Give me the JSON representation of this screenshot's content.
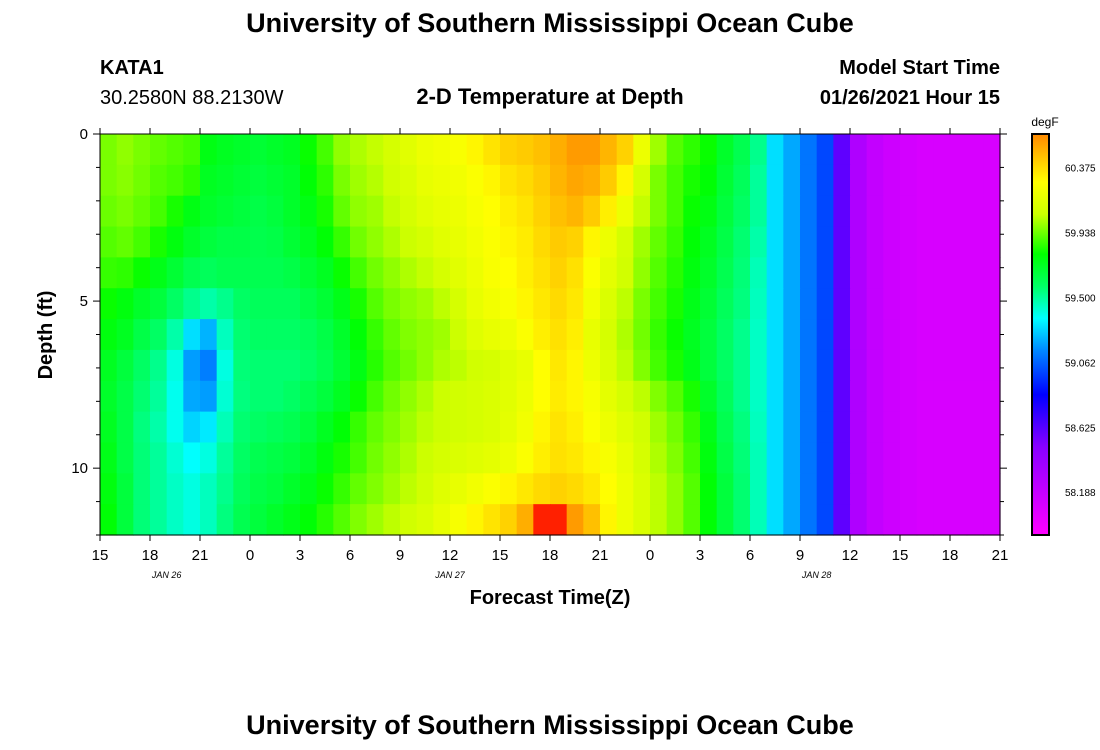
{
  "page": {
    "title_top": "University of Southern Mississippi Ocean Cube",
    "title_bottom": "University of Southern Mississippi Ocean Cube",
    "station": "KATA1",
    "location": "30.2580N 88.2130W",
    "plot_title": "2-D Temperature at Depth",
    "model_start_label": "Model Start Time",
    "model_start_value": "01/26/2021 Hour 15"
  },
  "chart_data": {
    "type": "heatmap",
    "title": "2-D Temperature at Depth",
    "xlabel": "Forecast Time(Z)",
    "ylabel": "Depth (ft)",
    "x_start": "01/26/2021 15Z",
    "x_end": "01/28/2021 21Z",
    "xlim_hours": [
      0,
      54
    ],
    "ylim": [
      0,
      12
    ],
    "y_inverted": true,
    "x_tick_labels": [
      "15",
      "18",
      "21",
      "0",
      "3",
      "6",
      "9",
      "12",
      "15",
      "18",
      "21",
      "0",
      "3",
      "6",
      "9",
      "12",
      "15",
      "18",
      "21"
    ],
    "x_day_labels": [
      {
        "label": "JAN 26",
        "at_hour": 4
      },
      {
        "label": "JAN 27",
        "at_hour": 21
      },
      {
        "label": "JAN 28",
        "at_hour": 43
      }
    ],
    "y_tick_labels": [
      {
        "value": 0,
        "label": "0"
      },
      {
        "value": 5,
        "label": "5"
      },
      {
        "value": 10,
        "label": "10"
      }
    ],
    "colorbar": {
      "unit": "degF",
      "min": 57.9,
      "max": 60.6,
      "tick_labels": [
        "60.375",
        "59.938",
        "59.500",
        "59.062",
        "58.625",
        "58.188"
      ],
      "tick_values": [
        60.375,
        59.938,
        59.5,
        59.062,
        58.625,
        58.188
      ]
    },
    "columns_hours": [
      0,
      1,
      2,
      3,
      4,
      5,
      6,
      7,
      8,
      9,
      10,
      11,
      12,
      13,
      14,
      15,
      16,
      17,
      18,
      19,
      20,
      21,
      22,
      23,
      24,
      25,
      26,
      27,
      28,
      29,
      30,
      31,
      32,
      33,
      34,
      35,
      36,
      37,
      38,
      39,
      40,
      41,
      42,
      43,
      44,
      45,
      46,
      47,
      48,
      49,
      50,
      51,
      52,
      53
    ],
    "rows_depth_ft": [
      0,
      1,
      2,
      3,
      4,
      5,
      6,
      7,
      8,
      9,
      10,
      11,
      12
    ],
    "values": [
      [
        59.95,
        59.98,
        59.95,
        59.92,
        59.9,
        59.88,
        59.75,
        59.72,
        59.7,
        59.68,
        59.7,
        59.72,
        59.8,
        59.88,
        59.98,
        60.02,
        60.05,
        60.1,
        60.15,
        60.2,
        60.22,
        60.25,
        60.3,
        60.35,
        60.4,
        60.42,
        60.45,
        60.5,
        60.55,
        60.55,
        60.48,
        60.4,
        60.2,
        60.0,
        59.9,
        59.85,
        59.8,
        59.7,
        59.62,
        59.52,
        59.3,
        59.2,
        59.1,
        59.0,
        58.6,
        58.3,
        58.2,
        58.15,
        58.12,
        58.1,
        58.1,
        58.1,
        58.1,
        58.1
      ],
      [
        59.95,
        59.97,
        59.94,
        59.9,
        59.88,
        59.85,
        59.72,
        59.7,
        59.68,
        59.66,
        59.68,
        59.7,
        59.78,
        59.85,
        59.95,
        60.0,
        60.03,
        60.08,
        60.12,
        60.18,
        60.2,
        60.22,
        60.26,
        60.3,
        60.35,
        60.38,
        60.42,
        60.48,
        60.52,
        60.5,
        60.42,
        60.3,
        60.1,
        59.95,
        59.88,
        59.82,
        59.78,
        59.68,
        59.6,
        59.5,
        59.3,
        59.2,
        59.1,
        59.0,
        58.6,
        58.3,
        58.2,
        58.15,
        58.12,
        58.1,
        58.1,
        58.1,
        58.1,
        58.1
      ],
      [
        59.93,
        59.95,
        59.92,
        59.88,
        59.82,
        59.75,
        59.7,
        59.68,
        59.66,
        59.64,
        59.66,
        59.7,
        59.75,
        59.82,
        59.92,
        59.98,
        60.0,
        60.05,
        60.1,
        60.15,
        60.18,
        60.2,
        60.24,
        60.28,
        60.32,
        60.35,
        60.4,
        60.45,
        60.48,
        60.42,
        60.32,
        60.2,
        60.05,
        59.95,
        59.88,
        59.8,
        59.75,
        59.66,
        59.58,
        59.5,
        59.3,
        59.2,
        59.1,
        59.0,
        58.6,
        58.3,
        58.2,
        58.15,
        58.12,
        58.1,
        58.1,
        58.1,
        58.1,
        58.1
      ],
      [
        59.9,
        59.92,
        59.88,
        59.82,
        59.76,
        59.7,
        59.66,
        59.64,
        59.64,
        59.63,
        59.64,
        59.68,
        59.72,
        59.78,
        59.86,
        59.94,
        59.98,
        60.02,
        60.06,
        60.1,
        60.15,
        60.18,
        60.22,
        60.26,
        60.3,
        60.33,
        60.38,
        60.42,
        60.4,
        60.3,
        60.2,
        60.1,
        60.0,
        59.92,
        59.86,
        59.78,
        59.72,
        59.64,
        59.56,
        59.48,
        59.3,
        59.2,
        59.1,
        59.0,
        58.6,
        58.3,
        58.2,
        58.15,
        58.12,
        58.1,
        58.1,
        58.1,
        58.1,
        58.1
      ],
      [
        59.86,
        59.85,
        59.8,
        59.74,
        59.68,
        59.62,
        59.6,
        59.62,
        59.62,
        59.62,
        59.62,
        59.64,
        59.68,
        59.72,
        59.8,
        59.88,
        59.94,
        59.98,
        60.02,
        60.05,
        60.1,
        60.15,
        60.2,
        60.25,
        60.28,
        60.32,
        60.36,
        60.4,
        60.36,
        60.26,
        60.16,
        60.08,
        59.98,
        59.9,
        59.84,
        59.76,
        59.7,
        59.62,
        59.55,
        59.46,
        59.3,
        59.2,
        59.1,
        59.0,
        58.6,
        58.3,
        58.2,
        58.15,
        58.12,
        58.1,
        58.1,
        58.1,
        58.1,
        58.1
      ],
      [
        59.8,
        59.76,
        59.7,
        59.66,
        59.58,
        59.52,
        59.48,
        59.52,
        59.58,
        59.6,
        59.6,
        59.6,
        59.64,
        59.68,
        59.74,
        59.82,
        59.9,
        59.95,
        59.98,
        60.0,
        60.04,
        60.1,
        60.18,
        60.22,
        60.25,
        60.3,
        60.34,
        60.38,
        60.34,
        60.22,
        60.12,
        60.04,
        59.95,
        59.88,
        59.82,
        59.74,
        59.68,
        59.6,
        59.54,
        59.45,
        59.3,
        59.2,
        59.1,
        59.0,
        58.6,
        58.3,
        58.2,
        58.15,
        58.12,
        58.1,
        58.1,
        58.1,
        58.1,
        58.1
      ],
      [
        59.76,
        59.72,
        59.64,
        59.58,
        59.48,
        59.3,
        59.22,
        59.45,
        59.56,
        59.58,
        59.58,
        59.58,
        59.6,
        59.64,
        59.7,
        59.78,
        59.86,
        59.92,
        59.96,
        59.98,
        60.0,
        60.06,
        60.14,
        60.18,
        60.2,
        60.26,
        60.32,
        60.36,
        60.32,
        60.18,
        60.1,
        60.02,
        59.94,
        59.86,
        59.8,
        59.72,
        59.66,
        59.58,
        59.52,
        59.44,
        59.3,
        59.2,
        59.1,
        59.0,
        58.6,
        58.3,
        58.2,
        58.15,
        58.12,
        58.1,
        58.1,
        58.1,
        58.1,
        58.1
      ],
      [
        59.72,
        59.66,
        59.58,
        59.52,
        59.4,
        59.18,
        59.12,
        59.4,
        59.55,
        59.56,
        59.56,
        59.56,
        59.58,
        59.62,
        59.68,
        59.75,
        59.84,
        59.9,
        59.94,
        59.98,
        60.02,
        60.04,
        60.08,
        60.1,
        60.14,
        60.18,
        60.28,
        60.34,
        60.3,
        60.2,
        60.12,
        60.04,
        59.96,
        59.88,
        59.82,
        59.74,
        59.66,
        59.58,
        59.52,
        59.44,
        59.3,
        59.2,
        59.1,
        59.0,
        58.6,
        58.3,
        58.2,
        58.15,
        58.12,
        58.1,
        58.1,
        58.1,
        58.1,
        58.1
      ],
      [
        59.7,
        59.64,
        59.56,
        59.5,
        59.38,
        59.2,
        59.18,
        59.42,
        59.54,
        59.56,
        59.56,
        59.58,
        59.62,
        59.66,
        59.72,
        59.8,
        59.88,
        59.94,
        59.98,
        60.02,
        60.06,
        60.08,
        60.1,
        60.12,
        60.15,
        60.2,
        60.28,
        60.33,
        60.3,
        60.24,
        60.16,
        60.1,
        60.04,
        59.96,
        59.9,
        59.82,
        59.7,
        59.6,
        59.52,
        59.44,
        59.3,
        59.2,
        59.1,
        59.0,
        58.6,
        58.3,
        58.2,
        58.15,
        58.12,
        58.1,
        58.1,
        58.1,
        58.1,
        58.1
      ],
      [
        59.72,
        59.64,
        59.54,
        59.48,
        59.38,
        59.28,
        59.32,
        59.46,
        59.56,
        59.58,
        59.6,
        59.62,
        59.66,
        59.72,
        59.78,
        59.86,
        59.92,
        59.96,
        60.0,
        60.04,
        60.06,
        60.08,
        60.1,
        60.12,
        60.16,
        60.22,
        60.3,
        60.35,
        60.32,
        60.26,
        60.2,
        60.14,
        60.08,
        60.0,
        59.94,
        59.86,
        59.74,
        59.62,
        59.54,
        59.45,
        59.3,
        59.2,
        59.1,
        59.0,
        58.6,
        58.3,
        58.2,
        58.15,
        58.12,
        58.1,
        58.1,
        58.1,
        58.1,
        58.1
      ],
      [
        59.74,
        59.64,
        59.55,
        59.5,
        59.42,
        59.36,
        59.4,
        59.5,
        59.58,
        59.62,
        59.64,
        59.66,
        59.7,
        59.76,
        59.82,
        59.88,
        59.94,
        59.98,
        60.02,
        60.06,
        60.1,
        60.12,
        60.14,
        60.16,
        60.2,
        60.26,
        60.32,
        60.36,
        60.34,
        60.3,
        60.24,
        60.18,
        60.1,
        60.02,
        59.96,
        59.88,
        59.76,
        59.64,
        59.55,
        59.46,
        59.3,
        59.2,
        59.1,
        59.0,
        58.6,
        58.3,
        58.2,
        58.15,
        58.12,
        58.1,
        58.1,
        58.1,
        58.1,
        58.1
      ],
      [
        59.76,
        59.66,
        59.55,
        59.5,
        59.44,
        59.4,
        59.45,
        59.52,
        59.6,
        59.64,
        59.66,
        59.7,
        59.74,
        59.8,
        59.86,
        59.92,
        59.96,
        60.0,
        60.04,
        60.08,
        60.14,
        60.18,
        60.22,
        60.26,
        60.3,
        60.34,
        60.38,
        60.4,
        60.38,
        60.34,
        60.28,
        60.2,
        60.12,
        60.04,
        59.98,
        59.9,
        59.78,
        59.66,
        59.56,
        59.46,
        59.3,
        59.2,
        59.1,
        59.0,
        58.6,
        58.3,
        58.2,
        58.15,
        58.12,
        58.1,
        58.1,
        58.1,
        58.1,
        58.1
      ],
      [
        59.78,
        59.66,
        59.55,
        59.5,
        59.44,
        59.4,
        59.45,
        59.54,
        59.62,
        59.66,
        59.7,
        59.74,
        59.78,
        59.84,
        59.9,
        59.96,
        60.0,
        60.04,
        60.08,
        60.12,
        60.18,
        60.24,
        60.3,
        60.35,
        60.4,
        60.5,
        60.62,
        60.62,
        60.55,
        60.45,
        60.3,
        60.2,
        60.12,
        60.04,
        59.98,
        59.9,
        59.78,
        59.66,
        59.56,
        59.46,
        59.3,
        59.2,
        59.1,
        59.0,
        58.6,
        58.3,
        58.2,
        58.15,
        58.12,
        58.1,
        58.1,
        58.1,
        58.1,
        58.1
      ]
    ]
  }
}
